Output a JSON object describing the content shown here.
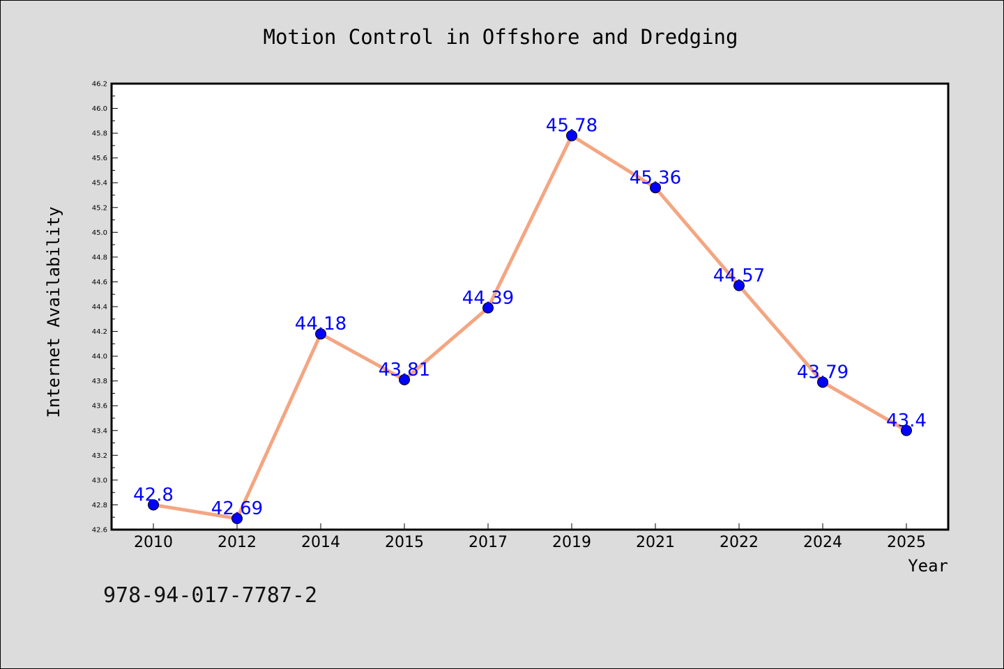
{
  "chart_data": {
    "type": "line",
    "title": "Motion Control in Offshore and Dredging",
    "xlabel": "Year",
    "ylabel": "Internet Availability",
    "categories": [
      "2010",
      "2012",
      "2014",
      "2015",
      "2017",
      "2019",
      "2021",
      "2022",
      "2024",
      "2025"
    ],
    "series": [
      {
        "values": [
          42.8,
          42.69,
          44.18,
          43.81,
          44.39,
          45.78,
          45.36,
          44.57,
          43.79,
          43.4
        ],
        "data_labels": [
          "42.8",
          "42.69",
          "44.18",
          "43.81",
          "44.39",
          "45.78",
          "45.36",
          "44.57",
          "43.79",
          "43.4"
        ]
      }
    ],
    "ylim": [
      42.6,
      46.2
    ],
    "y_major_ticks": [
      "42.6",
      "42.8",
      "43.0",
      "43.2",
      "43.4",
      "43.6",
      "43.8",
      "44.0",
      "44.2",
      "44.4",
      "44.6",
      "44.8",
      "45.0",
      "45.2",
      "45.4",
      "45.6",
      "45.8",
      "46.0",
      "46.2"
    ],
    "grid": false,
    "legend": "none",
    "colors": {
      "line": "#f4a582",
      "marker": "#0000ff",
      "label": "#0000ff",
      "background": "#dcdcdc",
      "plot_background": "#ffffff"
    }
  },
  "footer": {
    "identifier": "978-94-017-7787-2"
  }
}
